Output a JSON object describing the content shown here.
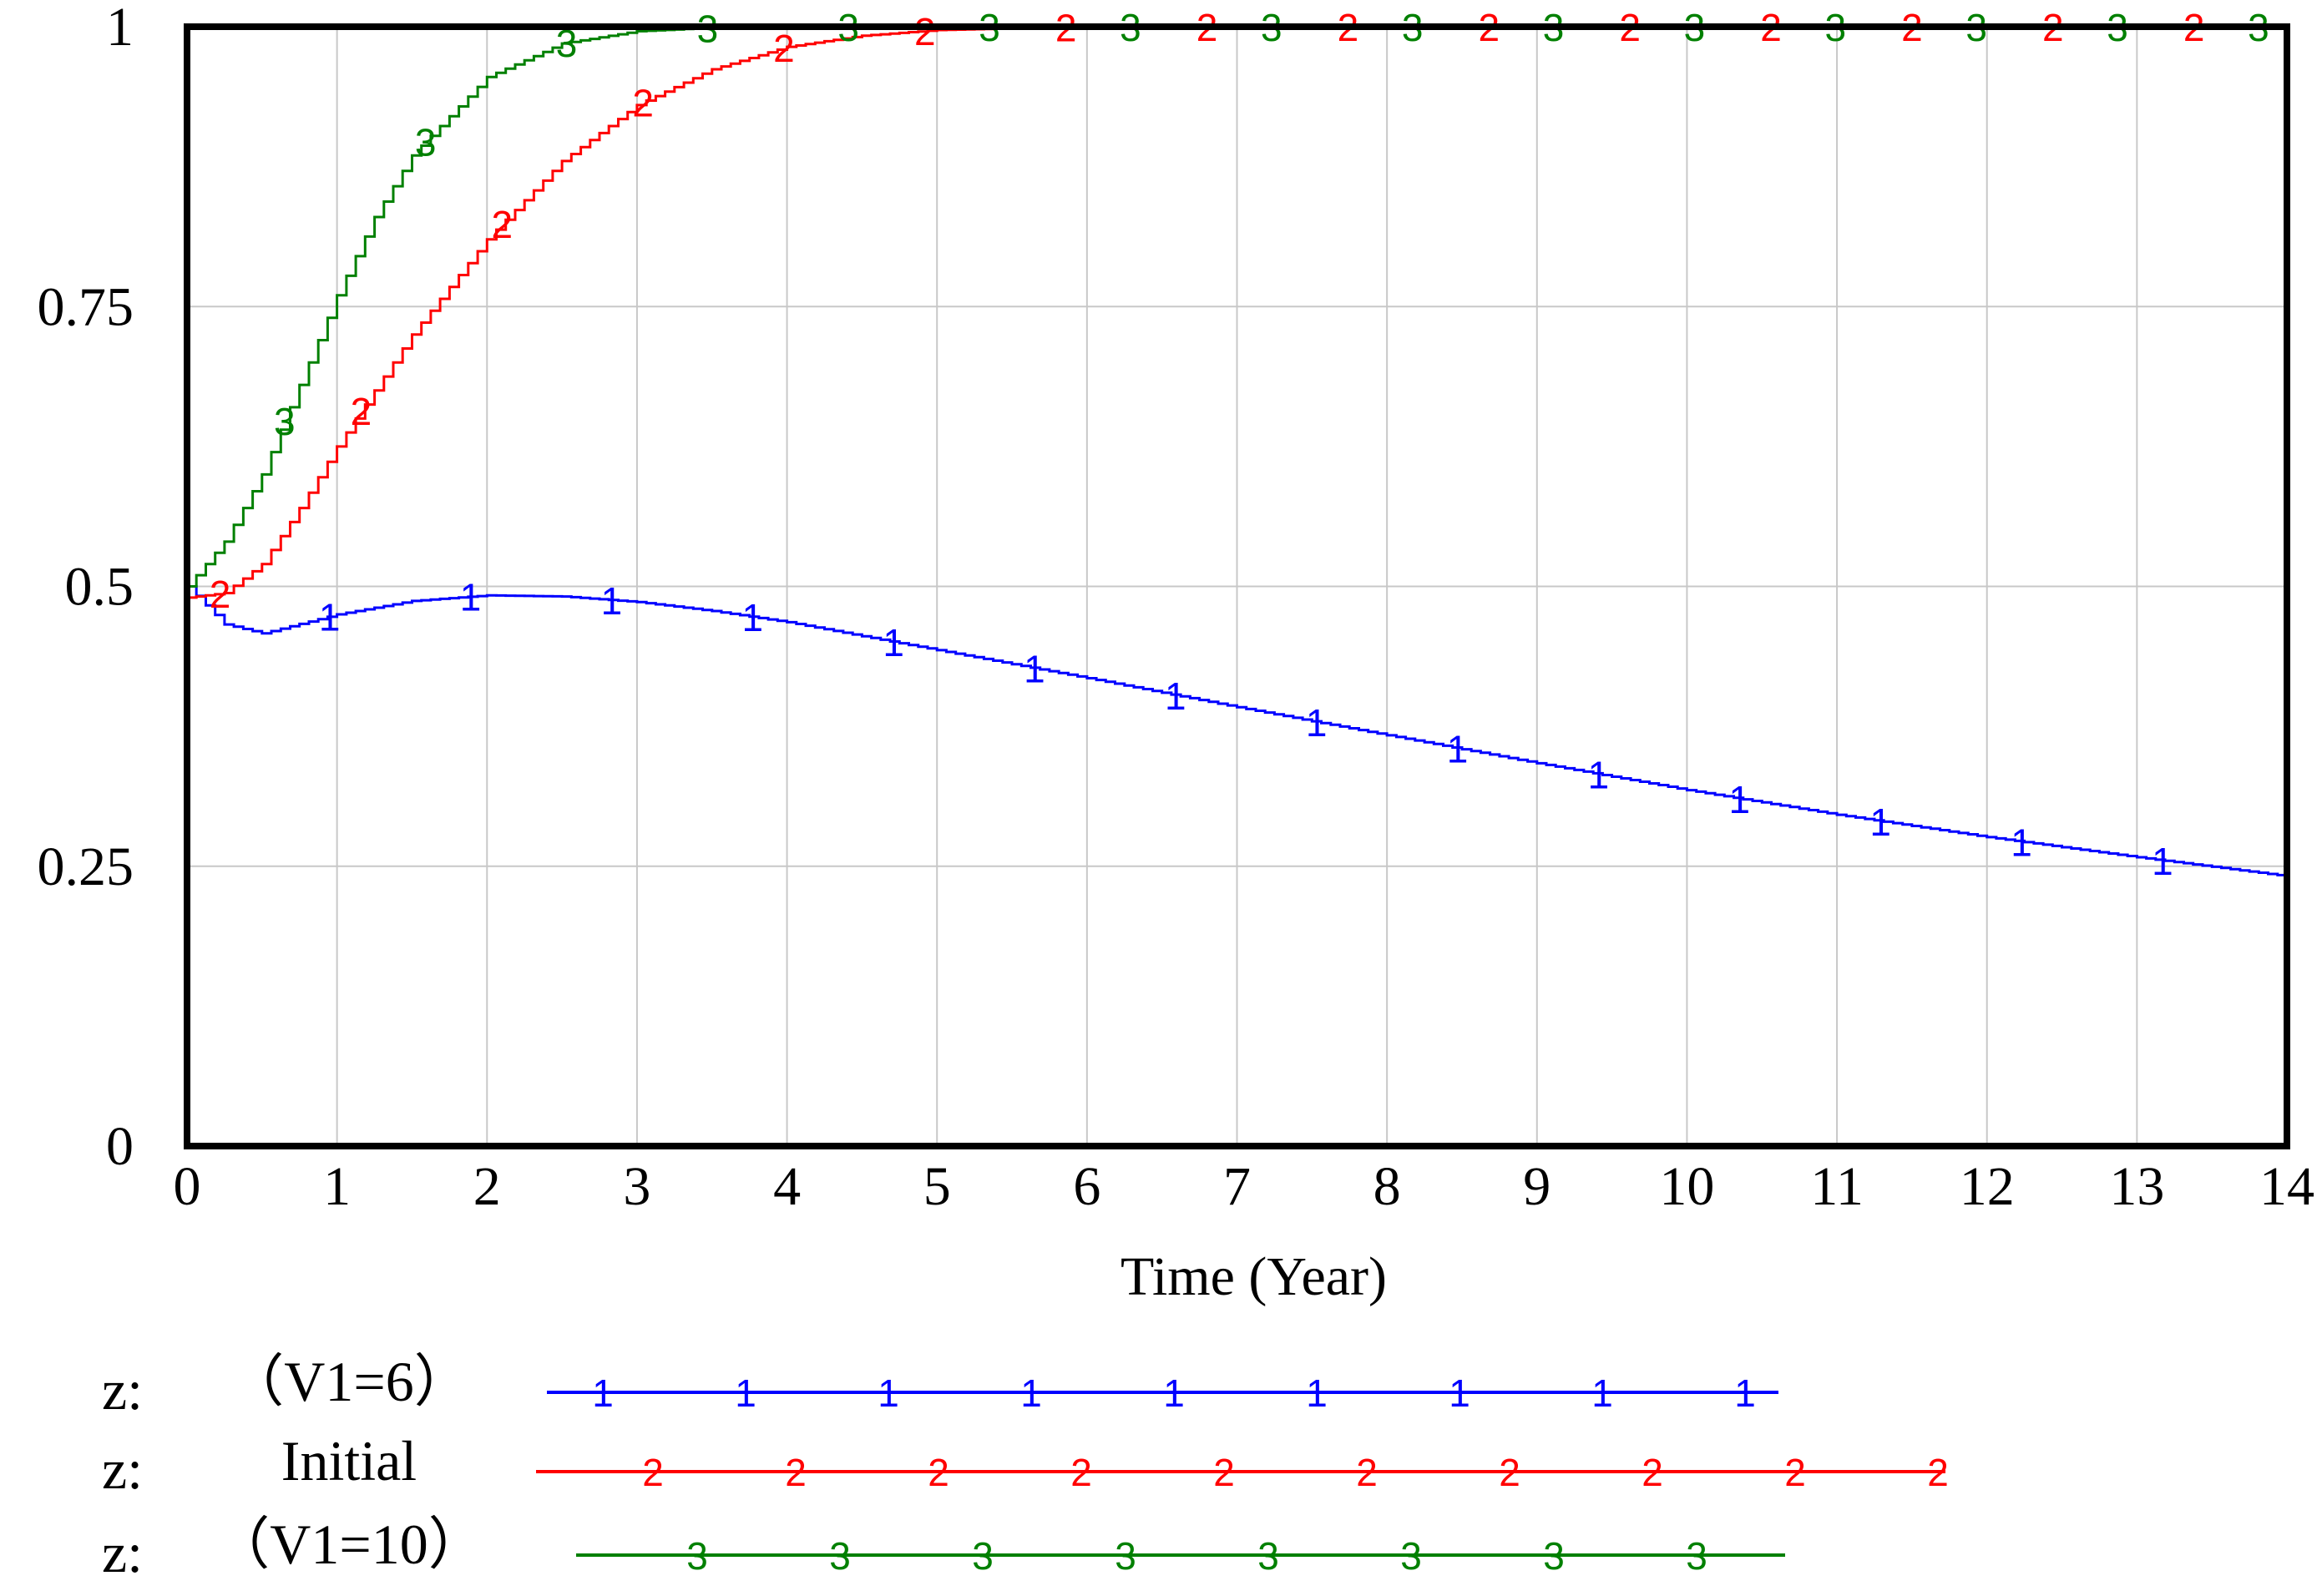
{
  "chart_data": {
    "type": "line",
    "title": "",
    "xlabel": "Time (Year)",
    "ylabel": "",
    "xlim": [
      0,
      14
    ],
    "ylim": [
      0,
      1
    ],
    "x_ticks": [
      "0",
      "1",
      "2",
      "3",
      "4",
      "5",
      "6",
      "7",
      "8",
      "9",
      "10",
      "11",
      "12",
      "13",
      "14"
    ],
    "y_ticks": [
      "0",
      "0.25",
      "0.5",
      "0.75",
      "1"
    ],
    "grid": true,
    "series": [
      {
        "id": "1",
        "name": "z:",
        "legend_label": "（V1=6）",
        "color": "#0000ff",
        "x": [
          0,
          0.25,
          0.5,
          1,
          1.5,
          2,
          2.5,
          3,
          3.5,
          4,
          5,
          6,
          7,
          8,
          9,
          10,
          11,
          12,
          13,
          14
        ],
        "y": [
          0.5,
          0.466,
          0.458,
          0.475,
          0.487,
          0.492,
          0.491,
          0.486,
          0.478,
          0.468,
          0.443,
          0.418,
          0.392,
          0.367,
          0.342,
          0.318,
          0.296,
          0.276,
          0.258,
          0.241
        ]
      },
      {
        "id": "2",
        "name": "z:",
        "legend_label": "Initial",
        "color": "#ff0000",
        "x": [
          0,
          0.25,
          0.5,
          0.75,
          1,
          1.25,
          1.5,
          2,
          2.5,
          3,
          3.5,
          4,
          4.5,
          5,
          6,
          7,
          8,
          9,
          10,
          11,
          12,
          13,
          14
        ],
        "y": [
          0.49,
          0.494,
          0.52,
          0.57,
          0.625,
          0.675,
          0.725,
          0.81,
          0.88,
          0.93,
          0.962,
          0.982,
          0.992,
          0.997,
          1,
          1,
          1,
          1,
          1,
          1,
          1,
          1,
          1
        ]
      },
      {
        "id": "3",
        "name": "z:",
        "legend_label": "（V1=10）",
        "color": "#008000",
        "x": [
          0,
          0.25,
          0.5,
          0.75,
          1,
          1.25,
          1.5,
          2,
          2.5,
          3,
          3.5,
          4,
          5,
          6,
          7,
          8,
          9,
          10,
          11,
          12,
          13,
          14
        ],
        "y": [
          0.5,
          0.54,
          0.6,
          0.68,
          0.76,
          0.83,
          0.885,
          0.955,
          0.985,
          0.996,
          0.999,
          1,
          1,
          1,
          1,
          1,
          1,
          1,
          1,
          1,
          1,
          1
        ]
      }
    ]
  }
}
